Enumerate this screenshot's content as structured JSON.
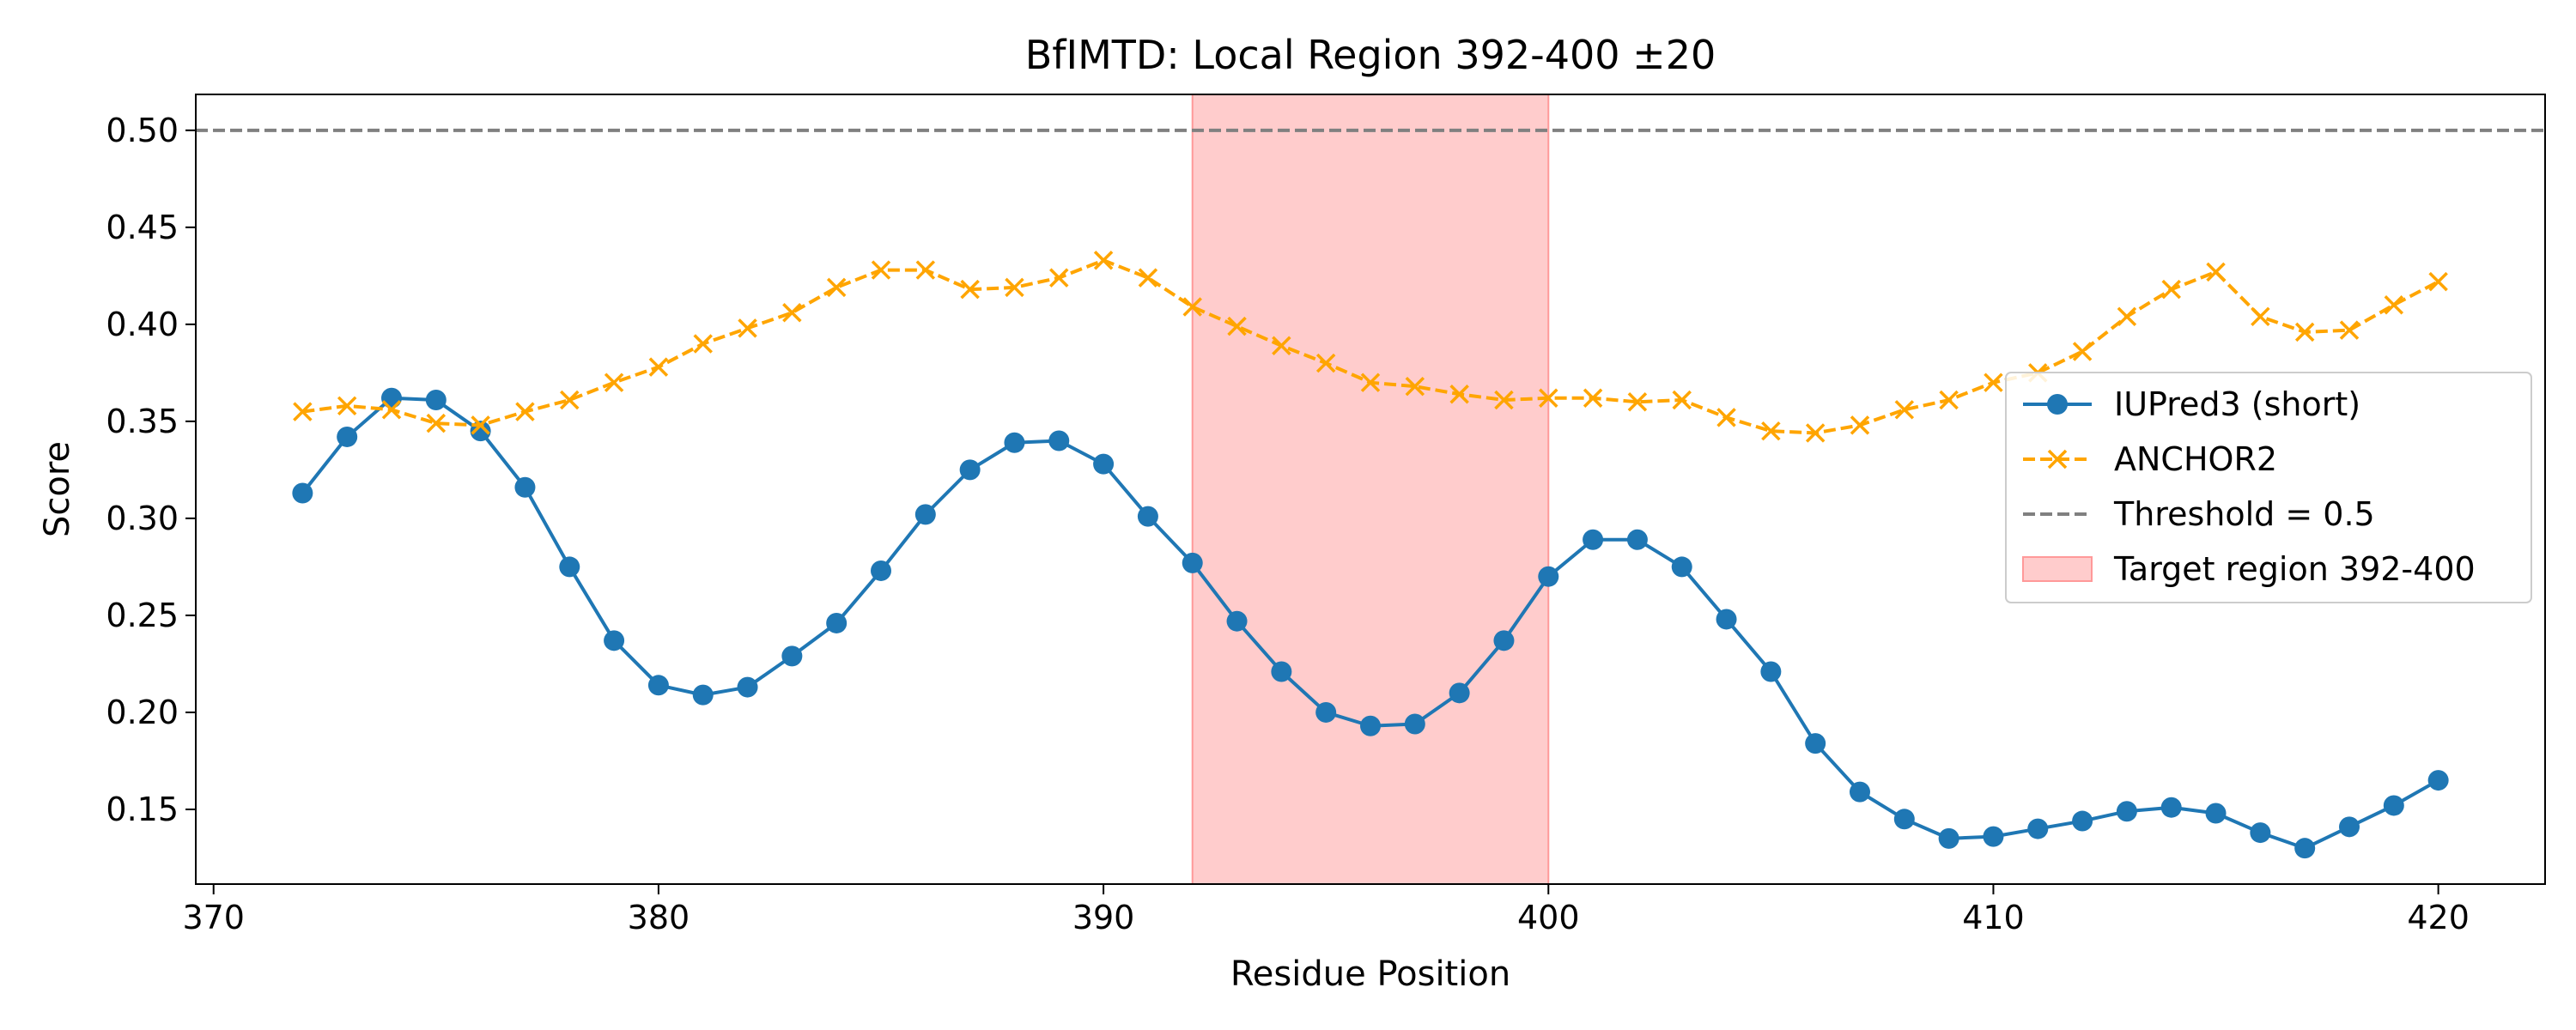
{
  "chart_data": {
    "type": "line",
    "title": "BfIMTD: Local Region 392-400 ±20",
    "xlabel": "Residue Position",
    "ylabel": "Score",
    "xlim": [
      369.6,
      422.4
    ],
    "ylim": [
      0.1115,
      0.5185
    ],
    "x_ticks": [
      370,
      380,
      390,
      400,
      410,
      420
    ],
    "y_ticks": [
      0.15,
      0.2,
      0.25,
      0.3,
      0.35,
      0.4,
      0.45,
      0.5
    ],
    "grid": false,
    "legend_position": "center-right",
    "x": [
      372,
      373,
      374,
      375,
      376,
      377,
      378,
      379,
      380,
      381,
      382,
      383,
      384,
      385,
      386,
      387,
      388,
      389,
      390,
      391,
      392,
      393,
      394,
      395,
      396,
      397,
      398,
      399,
      400,
      401,
      402,
      403,
      404,
      405,
      406,
      407,
      408,
      409,
      410,
      411,
      412,
      413,
      414,
      415,
      416,
      417,
      418,
      419,
      420
    ],
    "series": [
      {
        "name": "IUPred3 (short)",
        "color": "#1f77b4",
        "marker": "circle",
        "line_style": "solid",
        "values": [
          0.313,
          0.342,
          0.362,
          0.361,
          0.345,
          0.316,
          0.275,
          0.237,
          0.214,
          0.209,
          0.213,
          0.229,
          0.246,
          0.273,
          0.302,
          0.325,
          0.339,
          0.34,
          0.328,
          0.301,
          0.277,
          0.247,
          0.221,
          0.2,
          0.193,
          0.194,
          0.21,
          0.237,
          0.27,
          0.289,
          0.289,
          0.275,
          0.248,
          0.221,
          0.184,
          0.159,
          0.145,
          0.135,
          0.136,
          0.14,
          0.144,
          0.149,
          0.151,
          0.148,
          0.138,
          0.13,
          0.141,
          0.152,
          0.165
        ]
      },
      {
        "name": "ANCHOR2",
        "color": "#ffa500",
        "marker": "x",
        "line_style": "dashed",
        "values": [
          0.355,
          0.358,
          0.356,
          0.349,
          0.348,
          0.355,
          0.361,
          0.37,
          0.378,
          0.39,
          0.398,
          0.406,
          0.419,
          0.428,
          0.428,
          0.418,
          0.419,
          0.424,
          0.433,
          0.424,
          0.409,
          0.399,
          0.389,
          0.38,
          0.37,
          0.368,
          0.364,
          0.361,
          0.362,
          0.362,
          0.36,
          0.361,
          0.352,
          0.345,
          0.344,
          0.348,
          0.356,
          0.361,
          0.37,
          0.375,
          0.386,
          0.404,
          0.418,
          0.427,
          0.404,
          0.396,
          0.397,
          0.41,
          0.422
        ]
      }
    ],
    "threshold": {
      "name": "Threshold = 0.5",
      "value": 0.5,
      "color": "#808080",
      "line_style": "dashed"
    },
    "region": {
      "name": "Target region 392-400",
      "start": 392,
      "end": 400,
      "color": "#ff9999"
    }
  }
}
